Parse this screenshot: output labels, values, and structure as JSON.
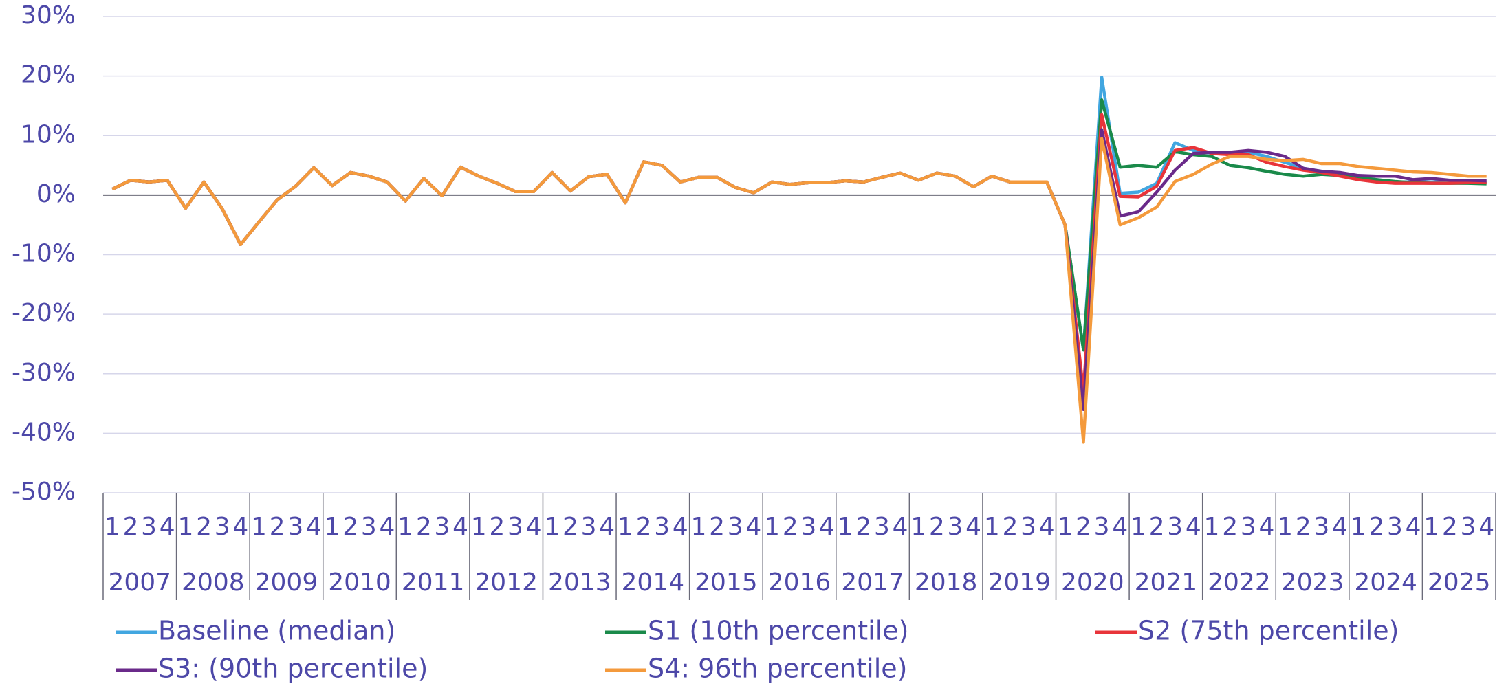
{
  "chart_data": {
    "type": "line",
    "categories": [
      "1",
      "2",
      "3",
      "4",
      "1",
      "2",
      "3",
      "4",
      "1",
      "2",
      "3",
      "4",
      "1",
      "2",
      "3",
      "4",
      "1",
      "2",
      "3",
      "4",
      "1",
      "2",
      "3",
      "4",
      "1",
      "2",
      "3",
      "4",
      "1",
      "2",
      "3",
      "4",
      "1",
      "2",
      "3",
      "4",
      "1",
      "2",
      "3",
      "4",
      "1",
      "2",
      "3",
      "4",
      "1",
      "2",
      "3",
      "4",
      "1",
      "2",
      "3",
      "4",
      "1",
      "2",
      "3",
      "4",
      "1",
      "2",
      "3",
      "4",
      "1",
      "2",
      "3",
      "4",
      "1",
      "2",
      "3",
      "4",
      "1",
      "2",
      "3",
      "4",
      "1",
      "2",
      "3",
      "4"
    ],
    "category_groups": [
      "2007",
      "2008",
      "2009",
      "2010",
      "2011",
      "2012",
      "2013",
      "2014",
      "2015",
      "2016",
      "2017",
      "2018",
      "2019",
      "2020",
      "2021",
      "2022",
      "2023",
      "2024",
      "2025"
    ],
    "ylim": [
      -50,
      30
    ],
    "yticks": [
      {
        "value": -50,
        "label": "-50%"
      },
      {
        "value": -40,
        "label": "-40%"
      },
      {
        "value": -30,
        "label": "-30%"
      },
      {
        "value": -20,
        "label": "-20%"
      },
      {
        "value": -10,
        "label": "-10%"
      },
      {
        "value": 0,
        "label": "0%"
      },
      {
        "value": 10,
        "label": "10%"
      },
      {
        "value": 20,
        "label": "20%"
      },
      {
        "value": 30,
        "label": "30%"
      }
    ],
    "grid": true,
    "legend": "bottom",
    "series": [
      {
        "name": "Baseline (median)",
        "color": "#41a6e0",
        "values": [
          1,
          2.5,
          2.2,
          2.5,
          -2.2,
          2.2,
          -2.3,
          -8.3,
          -4.5,
          -0.8,
          1.5,
          4.6,
          1.6,
          3.8,
          3.2,
          2.2,
          -1,
          2.8,
          -0.1,
          4.7,
          3.2,
          2,
          0.6,
          0.6,
          3.8,
          0.7,
          3.1,
          3.5,
          -1.3,
          5.6,
          5,
          2.2,
          3,
          3,
          1.3,
          0.4,
          2.2,
          1.8,
          2.1,
          2.1,
          2.4,
          2.2,
          3,
          3.7,
          2.5,
          3.7,
          3.2,
          1.4,
          3.2,
          2.2,
          2.2,
          2.2,
          -5,
          -26,
          19.8,
          0.3,
          0.5,
          2,
          8.8,
          7.5,
          7,
          7,
          7.2,
          6.5,
          5.5,
          4.5,
          4,
          3.5,
          3,
          2.6,
          2.2,
          2.2,
          2.2,
          2.2,
          2.2,
          2.2
        ]
      },
      {
        "name": "S1 (10th percentile)",
        "color": "#1a8a4a",
        "values": [
          1,
          2.5,
          2.2,
          2.5,
          -2.2,
          2.2,
          -2.3,
          -8.3,
          -4.5,
          -0.8,
          1.5,
          4.6,
          1.6,
          3.8,
          3.2,
          2.2,
          -1,
          2.8,
          -0.1,
          4.7,
          3.2,
          2,
          0.6,
          0.6,
          3.8,
          0.7,
          3.1,
          3.5,
          -1.3,
          5.6,
          5,
          2.2,
          3,
          3,
          1.3,
          0.4,
          2.2,
          1.8,
          2.1,
          2.1,
          2.4,
          2.2,
          3,
          3.7,
          2.5,
          3.7,
          3.2,
          1.4,
          3.2,
          2.2,
          2.2,
          2.2,
          -5,
          -26,
          16,
          4.7,
          5,
          4.7,
          7.3,
          6.8,
          6.5,
          5,
          4.6,
          4,
          3.5,
          3.2,
          3.5,
          3.3,
          3,
          2.6,
          2.3,
          2.1,
          2,
          2,
          2,
          1.9
        ]
      },
      {
        "name": "S2 (75th percentile)",
        "color": "#e8343a",
        "values": [
          1,
          2.5,
          2.2,
          2.5,
          -2.2,
          2.2,
          -2.3,
          -8.3,
          -4.5,
          -0.8,
          1.5,
          4.6,
          1.6,
          3.8,
          3.2,
          2.2,
          -1,
          2.8,
          -0.1,
          4.7,
          3.2,
          2,
          0.6,
          0.6,
          3.8,
          0.7,
          3.1,
          3.5,
          -1.3,
          5.6,
          5,
          2.2,
          3,
          3,
          1.3,
          0.4,
          2.2,
          1.8,
          2.1,
          2.1,
          2.4,
          2.2,
          3,
          3.7,
          2.5,
          3.7,
          3.2,
          1.4,
          3.2,
          2.2,
          2.2,
          2.2,
          -5,
          -33,
          13.5,
          -0.2,
          -0.3,
          1.5,
          7.5,
          8,
          7,
          6.8,
          6.8,
          5.5,
          4.8,
          4.2,
          3.8,
          3.2,
          2.6,
          2.2,
          2,
          2,
          2,
          2,
          2.1,
          2.2
        ]
      },
      {
        "name": "S3: (90th percentile)",
        "color": "#6a2a8a",
        "values": [
          1,
          2.5,
          2.2,
          2.5,
          -2.2,
          2.2,
          -2.3,
          -8.3,
          -4.5,
          -0.8,
          1.5,
          4.6,
          1.6,
          3.8,
          3.2,
          2.2,
          -1,
          2.8,
          -0.1,
          4.7,
          3.2,
          2,
          0.6,
          0.6,
          3.8,
          0.7,
          3.1,
          3.5,
          -1.3,
          5.6,
          5,
          2.2,
          3,
          3,
          1.3,
          0.4,
          2.2,
          1.8,
          2.1,
          2.1,
          2.4,
          2.2,
          3,
          3.7,
          2.5,
          3.7,
          3.2,
          1.4,
          3.2,
          2.2,
          2.2,
          2.2,
          -5,
          -36,
          11,
          -3.5,
          -2.8,
          0.5,
          4.2,
          7,
          7.2,
          7.2,
          7.5,
          7.2,
          6.5,
          4.5,
          4,
          3.8,
          3.3,
          3.2,
          3.2,
          2.6,
          2.8,
          2.5,
          2.5,
          2.4
        ]
      },
      {
        "name": "S4: 96th percentile)",
        "color": "#f49a3c",
        "values": [
          1,
          2.5,
          2.2,
          2.5,
          -2.2,
          2.2,
          -2.3,
          -8.3,
          -4.5,
          -0.8,
          1.5,
          4.6,
          1.6,
          3.8,
          3.2,
          2.2,
          -1,
          2.8,
          -0.1,
          4.7,
          3.2,
          2,
          0.6,
          0.6,
          3.8,
          0.7,
          3.1,
          3.5,
          -1.3,
          5.6,
          5,
          2.2,
          3,
          3,
          1.3,
          0.4,
          2.2,
          1.8,
          2.1,
          2.1,
          2.4,
          2.2,
          3,
          3.7,
          2.5,
          3.7,
          3.2,
          1.4,
          3.2,
          2.2,
          2.2,
          2.2,
          -5,
          -41.5,
          9.5,
          -5,
          -3.8,
          -2,
          2.3,
          3.5,
          5.2,
          6.5,
          6.5,
          6,
          5.8,
          6,
          5.3,
          5.3,
          4.8,
          4.5,
          4.2,
          3.9,
          3.8,
          3.5,
          3.2,
          3.2
        ]
      }
    ]
  }
}
